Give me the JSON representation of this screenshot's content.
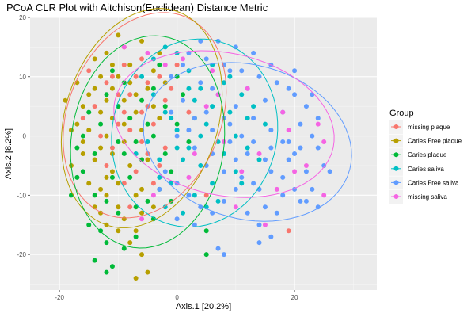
{
  "chart_data": {
    "type": "scatter",
    "title": "PCoA CLR Plot with Aitchison(Euclidean) Distance Metric",
    "xlabel": "Axis.1   [20.2%]",
    "ylabel": "Axis.2   [8.2%]",
    "xlim": [
      -25,
      34
    ],
    "ylim": [
      -26,
      20
    ],
    "xticks": [
      -20,
      0,
      20
    ],
    "yticks": [
      -20,
      -10,
      0,
      10,
      20
    ],
    "grid": true,
    "legend": {
      "title": "Group",
      "position": "right"
    },
    "series": [
      {
        "name": "missing plaque",
        "color": "#F8766D",
        "points": [
          [
            -12,
            9
          ],
          [
            -8,
            7
          ],
          [
            -6,
            4
          ],
          [
            -10,
            2
          ],
          [
            -3,
            10
          ],
          [
            -5,
            -3
          ],
          [
            -9,
            12
          ],
          [
            -14,
            5
          ],
          [
            -7,
            -6
          ],
          [
            -4,
            2
          ],
          [
            -2,
            6
          ],
          [
            -11,
            -2
          ],
          [
            -6,
            13
          ],
          [
            -9,
            -8
          ],
          [
            -3,
            -5
          ],
          [
            -15,
            11
          ],
          [
            5,
            -10
          ],
          [
            -1,
            8
          ],
          [
            -8,
            1
          ],
          [
            -12,
            -5
          ],
          [
            -5,
            9
          ],
          [
            -16,
            3
          ],
          [
            -4,
            -8
          ],
          [
            -10,
            7
          ],
          [
            -7,
            10
          ],
          [
            -13,
            0
          ],
          [
            -6,
            -1
          ],
          [
            2,
            4
          ],
          [
            -9,
            4
          ],
          [
            -2,
            -2
          ],
          [
            -11,
            10
          ],
          [
            -5,
            5
          ],
          [
            19,
            -16
          ],
          [
            -8,
            -12
          ],
          [
            0,
            12
          ]
        ]
      },
      {
        "name": "Caries Free plaque",
        "color": "#B79F00",
        "points": [
          [
            -12,
            14
          ],
          [
            -10,
            10
          ],
          [
            -14,
            8
          ],
          [
            -9,
            6
          ],
          [
            -16,
            5
          ],
          [
            -11,
            3
          ],
          [
            -13,
            -2
          ],
          [
            -8,
            -5
          ],
          [
            -15,
            -8
          ],
          [
            -12,
            -10
          ],
          [
            -10,
            -12
          ],
          [
            -9,
            -14
          ],
          [
            -7,
            -16
          ],
          [
            -6,
            -20
          ],
          [
            -7,
            -24
          ],
          [
            -5,
            -23
          ],
          [
            -11,
            -3
          ],
          [
            -13,
            10
          ],
          [
            -8,
            12
          ],
          [
            -6,
            16
          ],
          [
            -10,
            17
          ],
          [
            -17,
            9
          ],
          [
            -19,
            6
          ],
          [
            -18,
            -5
          ],
          [
            -14,
            -12
          ],
          [
            -12,
            -15
          ],
          [
            -7,
            4
          ],
          [
            -5,
            8
          ],
          [
            -4,
            11
          ],
          [
            -3,
            14
          ],
          [
            -9,
            -1
          ],
          [
            -11,
            -6
          ],
          [
            -13,
            -9
          ],
          [
            -15,
            1
          ],
          [
            -16,
            -3
          ],
          [
            -17,
            2
          ],
          [
            -12,
            6
          ],
          [
            -8,
            9
          ],
          [
            -6,
            1
          ],
          [
            -5,
            -4
          ],
          [
            -10,
            -8
          ],
          [
            -9,
            2
          ],
          [
            -14,
            13
          ],
          [
            -11,
            12
          ],
          [
            -13,
            4
          ],
          [
            -12,
            0
          ],
          [
            -6,
            -9
          ],
          [
            -4,
            -12
          ],
          [
            -3,
            3
          ],
          [
            -2,
            9
          ],
          [
            -15,
            7
          ],
          [
            -10,
            -16
          ],
          [
            -8,
            -18
          ],
          [
            -13,
            -13
          ],
          [
            -16,
            -1
          ],
          [
            -18,
            1
          ],
          [
            -11,
            8
          ],
          [
            -7,
            7
          ],
          [
            -9,
            15
          ],
          [
            -4,
            5
          ],
          [
            -6,
            -13
          ],
          [
            -7,
            -10
          ],
          [
            -12,
            -7
          ],
          [
            -14,
            -4
          ]
        ]
      },
      {
        "name": "Caries plaque",
        "color": "#00BA38",
        "points": [
          [
            -14,
            -10
          ],
          [
            -13,
            -16
          ],
          [
            -12,
            -18
          ],
          [
            -14,
            -21
          ],
          [
            -11,
            -22
          ],
          [
            -9,
            -19
          ],
          [
            -7,
            -17
          ],
          [
            -10,
            -13
          ],
          [
            -12,
            -11
          ],
          [
            -16,
            -6
          ],
          [
            -17,
            -7
          ],
          [
            -18,
            -10
          ],
          [
            -15,
            -15
          ],
          [
            -11,
            -7
          ],
          [
            -9,
            -3
          ],
          [
            -7,
            -1
          ],
          [
            -8,
            3
          ],
          [
            -6,
            6
          ],
          [
            -4,
            8
          ],
          [
            -2,
            5
          ],
          [
            0,
            2
          ],
          [
            2,
            -1
          ],
          [
            -1,
            -6
          ],
          [
            -3,
            -9
          ],
          [
            -5,
            -11
          ],
          [
            -13,
            2
          ],
          [
            -15,
            4
          ],
          [
            -12,
            7
          ],
          [
            -10,
            5
          ],
          [
            -8,
            -7
          ],
          [
            -6,
            -4
          ],
          [
            -4,
            0
          ],
          [
            -2,
            -3
          ],
          [
            1,
            7
          ],
          [
            3,
            3
          ],
          [
            -9,
            9
          ],
          [
            -11,
            11
          ],
          [
            -16,
            0
          ],
          [
            -17,
            -2
          ],
          [
            5,
            -16
          ],
          [
            5,
            -20
          ],
          [
            -12,
            -23
          ],
          [
            -4,
            -14
          ],
          [
            -7,
            -12
          ],
          [
            -10,
            -1
          ],
          [
            -5,
            2
          ],
          [
            -3,
            12
          ],
          [
            0,
            10
          ],
          [
            -14,
            -3
          ],
          [
            -1,
            -11
          ]
        ]
      },
      {
        "name": "Caries saliva",
        "color": "#00BFC4",
        "points": [
          [
            -6,
            10
          ],
          [
            -4,
            7
          ],
          [
            -2,
            4
          ],
          [
            0,
            1
          ],
          [
            2,
            -2
          ],
          [
            4,
            -5
          ],
          [
            6,
            -8
          ],
          [
            8,
            -3
          ],
          [
            10,
            0
          ],
          [
            12,
            3
          ],
          [
            6,
            5
          ],
          [
            4,
            8
          ],
          [
            2,
            11
          ],
          [
            0,
            14
          ],
          [
            -2,
            15
          ],
          [
            3,
            -10
          ],
          [
            1,
            -13
          ],
          [
            -1,
            -8
          ],
          [
            -3,
            -4
          ],
          [
            -5,
            -1
          ],
          [
            5,
            2
          ],
          [
            7,
            -1
          ],
          [
            9,
            4
          ],
          [
            11,
            7
          ],
          [
            13,
            5
          ],
          [
            15,
            2
          ],
          [
            8,
            9
          ],
          [
            6,
            12
          ],
          [
            3,
            6
          ],
          [
            1,
            -4
          ],
          [
            -1,
            3
          ],
          [
            -3,
            -7
          ],
          [
            5,
            -12
          ],
          [
            -4,
            13
          ],
          [
            2,
            8
          ],
          [
            10,
            -6
          ],
          [
            12,
            -2
          ],
          [
            14,
            -4
          ],
          [
            7,
            -11
          ],
          [
            -2,
            -12
          ],
          [
            0,
            -2
          ],
          [
            9,
            10
          ],
          [
            4,
            0
          ],
          [
            -7,
            -3
          ],
          [
            11,
            -8
          ]
        ]
      },
      {
        "name": "Caries Free saliva",
        "color": "#619CFF",
        "points": [
          [
            2,
            14
          ],
          [
            5,
            13
          ],
          [
            8,
            12
          ],
          [
            11,
            11
          ],
          [
            14,
            10
          ],
          [
            17,
            9
          ],
          [
            20,
            7
          ],
          [
            22,
            5
          ],
          [
            24,
            3
          ],
          [
            23,
            0
          ],
          [
            21,
            -2
          ],
          [
            19,
            -4
          ],
          [
            16,
            -6
          ],
          [
            13,
            -8
          ],
          [
            10,
            -9
          ],
          [
            8,
            -11
          ],
          [
            6,
            -13
          ],
          [
            4,
            -12
          ],
          [
            2,
            -10
          ],
          [
            0,
            -8
          ],
          [
            -2,
            -6
          ],
          [
            1,
            6
          ],
          [
            4,
            9
          ],
          [
            7,
            7
          ],
          [
            10,
            5
          ],
          [
            13,
            3
          ],
          [
            16,
            1
          ],
          [
            18,
            -1
          ],
          [
            20,
            -3
          ],
          [
            22,
            -6
          ],
          [
            23,
            -9
          ],
          [
            21,
            -11
          ],
          [
            18,
            -10
          ],
          [
            15,
            -12
          ],
          [
            12,
            -13
          ],
          [
            3,
            3
          ],
          [
            6,
            1
          ],
          [
            9,
            -1
          ],
          [
            12,
            -3
          ],
          [
            15,
            -4
          ],
          [
            18,
            -7
          ],
          [
            20,
            -9
          ],
          [
            17,
            -13
          ],
          [
            14,
            -15
          ],
          [
            5,
            -5
          ],
          [
            8,
            -6
          ],
          [
            11,
            -7
          ],
          [
            0,
            0
          ],
          [
            -1,
            4
          ],
          [
            3,
            -2
          ],
          [
            6,
            -3
          ],
          [
            9,
            2
          ],
          [
            12,
            8
          ],
          [
            15,
            6
          ],
          [
            18,
            4
          ],
          [
            21,
            2
          ],
          [
            24,
            -2
          ],
          [
            25,
            -5
          ],
          [
            19,
            8
          ],
          [
            16,
            12
          ],
          [
            13,
            14
          ],
          [
            10,
            15
          ],
          [
            7,
            16
          ],
          [
            4,
            16
          ],
          [
            1,
            12
          ],
          [
            -1,
            10
          ],
          [
            3,
            -15
          ],
          [
            0,
            -14
          ],
          [
            7,
            -19
          ],
          [
            8,
            -20
          ],
          [
            14,
            -18
          ],
          [
            16,
            -17
          ],
          [
            22,
            -11
          ],
          [
            24,
            -12
          ],
          [
            10,
            -4
          ],
          [
            13,
            -1
          ],
          [
            16,
            -2
          ],
          [
            19,
            -1
          ],
          [
            6,
            8
          ],
          [
            9,
            11
          ],
          [
            2,
            1
          ],
          [
            5,
            4
          ],
          [
            8,
            3
          ],
          [
            11,
            0
          ],
          [
            14,
            -9
          ],
          [
            -3,
            -9
          ],
          [
            20,
            11
          ],
          [
            23,
            7
          ],
          [
            26,
            -6
          ]
        ]
      },
      {
        "name": "missing saliva",
        "color": "#F564E3",
        "points": [
          [
            -9,
            15
          ],
          [
            -5,
            14
          ],
          [
            1,
            13
          ],
          [
            6,
            11
          ],
          [
            12,
            8
          ],
          [
            18,
            4
          ],
          [
            24,
            2
          ],
          [
            25,
            -1
          ],
          [
            22,
            -5
          ],
          [
            17,
            -9
          ],
          [
            10,
            -12
          ],
          [
            -6,
            -14
          ],
          [
            3,
            -3
          ],
          [
            8,
            -1
          ],
          [
            14,
            -3
          ],
          [
            20,
            -6
          ],
          [
            25,
            -10
          ],
          [
            15,
            -15
          ],
          [
            5,
            5
          ],
          [
            -2,
            12
          ],
          [
            11,
            -6
          ],
          [
            2,
            -7
          ],
          [
            19,
            1
          ],
          [
            -4,
            -10
          ],
          [
            7,
            7
          ]
        ]
      }
    ],
    "ellipses": [
      {
        "series": "missing plaque",
        "cx": -5.5,
        "cy": 3.5,
        "rx": 13,
        "ry": 18,
        "angle": -23
      },
      {
        "series": "Caries Free plaque",
        "cx": -6,
        "cy": 3,
        "rx": 13,
        "ry": 19,
        "angle": -18
      },
      {
        "series": "Caries plaque",
        "cx": -5,
        "cy": -1,
        "rx": 13,
        "ry": 18,
        "angle": -8
      },
      {
        "series": "Caries saliva",
        "cx": 3,
        "cy": 0.5,
        "rx": 14,
        "ry": 16,
        "angle": -15
      },
      {
        "series": "Caries Free saliva",
        "cx": 12,
        "cy": -1,
        "rx": 18,
        "ry": 13,
        "angle": -15
      },
      {
        "series": "missing saliva",
        "cx": 8,
        "cy": 2,
        "rx": 19,
        "ry": 12,
        "angle": -12
      }
    ]
  }
}
